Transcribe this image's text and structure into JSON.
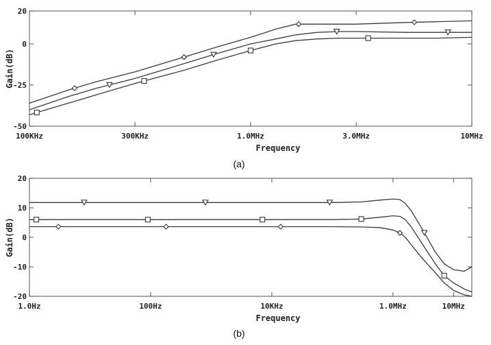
{
  "chart_data": [
    {
      "id": "a",
      "type": "line",
      "caption": "(a)",
      "xlabel": "Frequency",
      "ylabel": "Gain(dB)",
      "xscale": "log",
      "xlim": [
        100000,
        10000000
      ],
      "ylim": [
        -50,
        20
      ],
      "x_ticks": [
        {
          "value": 100000,
          "label": "100KHz"
        },
        {
          "value": 300000,
          "label": "300KHz"
        },
        {
          "value": 1000000,
          "label": "1.0MHz"
        },
        {
          "value": 3000000,
          "label": "3.0MHz"
        },
        {
          "value": 10000000,
          "label": "10MHz"
        }
      ],
      "y_ticks": [
        {
          "value": 20,
          "label": "20"
        },
        {
          "value": 0,
          "label": "0"
        },
        {
          "value": -25,
          "label": "-25"
        },
        {
          "value": -50,
          "label": "-50"
        }
      ],
      "grid": false,
      "series": [
        {
          "marker": "diamond",
          "x": [
            100000,
            150000,
            200000,
            300000,
            500000,
            700000,
            1000000,
            1300000,
            1600000,
            2000000,
            3000000,
            5000000,
            7000000,
            10000000
          ],
          "y": [
            -36,
            -28,
            -23,
            -17,
            -8,
            -2,
            4,
            9,
            12,
            12,
            12,
            13,
            13.5,
            14
          ],
          "marker_x": [
            160000,
            500000,
            1650000,
            5500000
          ]
        },
        {
          "marker": "triangle-down",
          "x": [
            100000,
            150000,
            200000,
            300000,
            500000,
            700000,
            1000000,
            1300000,
            1600000,
            2000000,
            2500000,
            3000000,
            5000000,
            7000000,
            10000000
          ],
          "y": [
            -40,
            -32,
            -27,
            -21,
            -12,
            -6,
            0,
            3,
            5.5,
            7,
            7.5,
            7.5,
            7,
            7,
            7
          ],
          "marker_x": [
            230000,
            680000,
            2450000,
            7800000
          ]
        },
        {
          "marker": "square",
          "x": [
            100000,
            150000,
            200000,
            300000,
            500000,
            700000,
            1000000,
            1300000,
            1600000,
            2000000,
            2500000,
            3000000,
            5000000,
            7000000,
            10000000
          ],
          "y": [
            -43,
            -36,
            -31,
            -24,
            -16,
            -10,
            -4,
            0,
            2,
            3,
            3.5,
            3.5,
            3.5,
            3.5,
            4
          ],
          "marker_x": [
            108000,
            330000,
            1000000,
            3400000
          ]
        }
      ]
    },
    {
      "id": "b",
      "type": "line",
      "caption": "(b)",
      "xlabel": "Frequency",
      "ylabel": "Gain(dB)",
      "xscale": "log",
      "xlim": [
        1,
        20000000
      ],
      "ylim": [
        -20,
        20
      ],
      "x_ticks": [
        {
          "value": 1,
          "label": "1.0Hz"
        },
        {
          "value": 100,
          "label": "100Hz"
        },
        {
          "value": 10000,
          "label": "10KHz"
        },
        {
          "value": 1000000,
          "label": "1.0MHz"
        },
        {
          "value": 10000000,
          "label": "10MHz"
        }
      ],
      "y_ticks": [
        {
          "value": 20,
          "label": "20"
        },
        {
          "value": 10,
          "label": "10"
        },
        {
          "value": 0,
          "label": "0"
        },
        {
          "value": -10,
          "label": "-10"
        },
        {
          "value": -20,
          "label": "-20"
        }
      ],
      "grid": false,
      "series": [
        {
          "marker": "triangle-down",
          "x": [
            1,
            10,
            100,
            1000,
            10000,
            100000,
            300000,
            600000,
            1000000,
            1300000,
            1600000,
            2000000,
            3000000,
            5000000,
            7000000,
            10000000,
            15000000,
            20000000
          ],
          "y": [
            11.8,
            11.8,
            11.8,
            11.8,
            11.8,
            11.8,
            12,
            12.6,
            13,
            12.8,
            11.5,
            9,
            3,
            -5,
            -9,
            -11,
            -11.5,
            -10
          ],
          "marker_x": [
            8,
            800,
            90000,
            3300000
          ]
        },
        {
          "marker": "square",
          "x": [
            1,
            10,
            100,
            1000,
            10000,
            100000,
            300000,
            600000,
            1000000,
            1300000,
            1600000,
            2000000,
            3000000,
            5000000,
            7000000,
            10000000,
            15000000,
            20000000
          ],
          "y": [
            6,
            6,
            6,
            6,
            6,
            6,
            6.2,
            6.8,
            7.3,
            7.1,
            6,
            3.5,
            -2,
            -9,
            -13,
            -15.5,
            -17.5,
            -18.5
          ],
          "marker_x": [
            1.3,
            90,
            7000,
            300000,
            7000000
          ]
        },
        {
          "marker": "diamond",
          "x": [
            1,
            10,
            100,
            1000,
            10000,
            100000,
            300000,
            600000,
            1000000,
            1300000,
            1600000,
            2000000,
            3000000,
            5000000,
            7000000,
            10000000,
            15000000,
            20000000
          ],
          "y": [
            3.6,
            3.6,
            3.6,
            3.6,
            3.6,
            3.6,
            3.5,
            3.3,
            2.5,
            1.5,
            0,
            -2.5,
            -7,
            -12,
            -15.5,
            -18,
            -19.5,
            -20
          ],
          "marker_x": [
            3,
            180,
            14000,
            1300000
          ]
        }
      ]
    }
  ]
}
